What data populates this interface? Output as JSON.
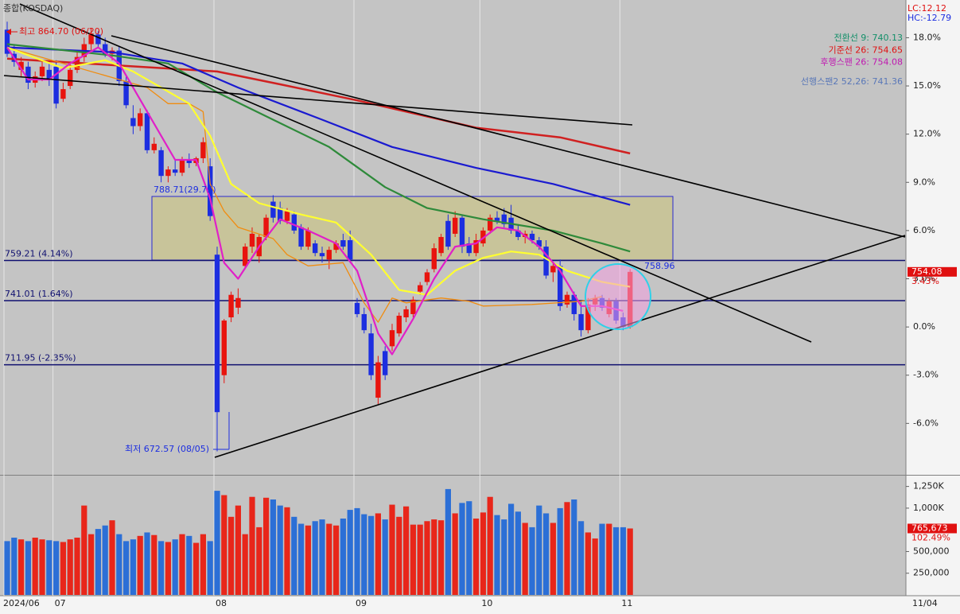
{
  "title": "종합(KOSDAQ)",
  "lc": "LC:12.12",
  "hc": "HC:-12.79",
  "last_date": "11/04",
  "chart_data": [
    {
      "type": "candlestick",
      "up_color": "#e8140e",
      "down_color": "#1c2ee0",
      "ylim": [
        -9.2,
        20.1
      ],
      "yticks": [
        {
          "value": 18,
          "label": "18.0%"
        },
        {
          "value": 15,
          "label": "15.0%"
        },
        {
          "value": 12,
          "label": "12.0%"
        },
        {
          "value": 9,
          "label": "9.0%"
        },
        {
          "value": 6,
          "label": "6.0%"
        },
        {
          "value": 3,
          "label": "3.0%"
        },
        {
          "value": 0,
          "label": "0.0%"
        },
        {
          "value": -3,
          "label": "-3.0%"
        },
        {
          "value": -6,
          "label": "-6.0%"
        }
      ],
      "categories": [
        "2024/06",
        null,
        null,
        null,
        null,
        null,
        null,
        "07",
        null,
        null,
        null,
        null,
        null,
        null,
        null,
        null,
        null,
        null,
        null,
        null,
        null,
        null,
        null,
        null,
        null,
        null,
        null,
        null,
        null,
        null,
        "08",
        null,
        null,
        null,
        null,
        null,
        null,
        null,
        null,
        null,
        null,
        null,
        null,
        null,
        null,
        null,
        null,
        null,
        null,
        null,
        "09",
        null,
        null,
        null,
        null,
        null,
        null,
        null,
        null,
        null,
        null,
        null,
        null,
        null,
        null,
        null,
        null,
        null,
        "10",
        null,
        null,
        null,
        null,
        null,
        null,
        null,
        null,
        null,
        null,
        null,
        null,
        null,
        null,
        null,
        null,
        null,
        null,
        null,
        "11",
        null
      ],
      "ohlc": [
        [
          18.5,
          19.0,
          16.8,
          17.0
        ],
        [
          17.0,
          17.6,
          16.2,
          16.5
        ],
        [
          16.0,
          16.8,
          15.6,
          16.5
        ],
        [
          16.2,
          16.5,
          14.8,
          15.2
        ],
        [
          15.2,
          15.9,
          14.9,
          15.6
        ],
        [
          15.6,
          16.6,
          15.3,
          16.2
        ],
        [
          16.0,
          16.4,
          15.0,
          15.4
        ],
        [
          16.2,
          16.6,
          13.6,
          13.9
        ],
        [
          14.2,
          15.2,
          14.0,
          14.8
        ],
        [
          15.0,
          16.4,
          14.8,
          16.0
        ],
        [
          16.0,
          17.2,
          15.8,
          16.8
        ],
        [
          16.8,
          18.0,
          16.5,
          17.6
        ],
        [
          17.6,
          18.6,
          17.2,
          18.2
        ],
        [
          18.2,
          18.4,
          17.4,
          17.6
        ],
        [
          17.6,
          18.0,
          16.8,
          17.0
        ],
        [
          17.0,
          17.4,
          16.6,
          17.2
        ],
        [
          17.2,
          17.5,
          15.0,
          15.3
        ],
        [
          15.3,
          15.6,
          13.6,
          13.8
        ],
        [
          13.0,
          13.8,
          12.0,
          12.5
        ],
        [
          12.5,
          13.6,
          12.2,
          13.3
        ],
        [
          13.3,
          13.5,
          10.8,
          11.0
        ],
        [
          11.0,
          11.8,
          10.8,
          11.4
        ],
        [
          11.0,
          11.2,
          9.0,
          9.4
        ],
        [
          9.4,
          10.0,
          9.0,
          9.8
        ],
        [
          9.8,
          10.4,
          9.4,
          9.6
        ],
        [
          9.6,
          10.6,
          9.4,
          10.4
        ],
        [
          10.4,
          10.8,
          9.9,
          10.2
        ],
        [
          10.2,
          10.6,
          10.0,
          10.5
        ],
        [
          10.5,
          11.8,
          10.2,
          11.5
        ],
        [
          10.0,
          10.5,
          6.6,
          6.9
        ],
        [
          4.5,
          5.0,
          -7.74,
          -5.3
        ],
        [
          -3.0,
          0.5,
          -3.5,
          0.4
        ],
        [
          0.6,
          2.2,
          0.3,
          2.0
        ],
        [
          1.2,
          2.4,
          0.8,
          1.8
        ],
        [
          3.8,
          5.2,
          3.6,
          5.0
        ],
        [
          5.0,
          6.2,
          4.6,
          5.8
        ],
        [
          4.4,
          5.8,
          4.0,
          5.6
        ],
        [
          5.6,
          7.0,
          5.4,
          6.8
        ],
        [
          7.8,
          8.2,
          6.5,
          6.8
        ],
        [
          7.4,
          7.8,
          6.4,
          6.6
        ],
        [
          6.6,
          7.4,
          6.4,
          7.2
        ],
        [
          7.0,
          7.2,
          5.8,
          6.0
        ],
        [
          6.2,
          6.4,
          4.8,
          5.0
        ],
        [
          5.0,
          6.2,
          4.8,
          6.0
        ],
        [
          5.2,
          5.4,
          4.4,
          4.6
        ],
        [
          4.6,
          5.0,
          4.0,
          4.4
        ],
        [
          4.2,
          5.0,
          3.6,
          4.8
        ],
        [
          4.8,
          5.4,
          4.6,
          5.2
        ],
        [
          5.4,
          5.8,
          4.8,
          5.0
        ],
        [
          5.4,
          6.0,
          4.0,
          4.2
        ],
        [
          1.5,
          1.8,
          0.6,
          0.8
        ],
        [
          0.8,
          1.2,
          -0.4,
          -0.2
        ],
        [
          -0.4,
          0.2,
          -3.3,
          -3.0
        ],
        [
          -4.4,
          -1.8,
          -4.8,
          -2.2
        ],
        [
          -1.5,
          -1.2,
          -3.3,
          -3.0
        ],
        [
          -1.2,
          0.2,
          -1.5,
          -0.2
        ],
        [
          -0.4,
          0.9,
          -0.6,
          0.7
        ],
        [
          0.6,
          1.3,
          0.3,
          1.1
        ],
        [
          0.8,
          1.9,
          0.6,
          1.7
        ],
        [
          2.2,
          2.8,
          2.0,
          2.6
        ],
        [
          2.8,
          3.6,
          2.6,
          3.4
        ],
        [
          3.6,
          5.2,
          3.4,
          4.9
        ],
        [
          4.6,
          5.8,
          4.4,
          5.6
        ],
        [
          6.6,
          7.0,
          4.8,
          5.0
        ],
        [
          5.8,
          7.2,
          5.6,
          6.8
        ],
        [
          6.8,
          7.0,
          4.6,
          5.0
        ],
        [
          5.2,
          5.6,
          4.4,
          4.6
        ],
        [
          4.6,
          5.8,
          4.4,
          5.4
        ],
        [
          5.2,
          6.2,
          5.0,
          6.0
        ],
        [
          6.0,
          7.0,
          5.8,
          6.8
        ],
        [
          6.8,
          7.2,
          6.4,
          6.6
        ],
        [
          7.0,
          7.4,
          6.2,
          6.4
        ],
        [
          6.8,
          7.6,
          5.8,
          6.0
        ],
        [
          6.0,
          6.4,
          5.4,
          5.6
        ],
        [
          5.6,
          6.0,
          5.2,
          5.8
        ],
        [
          5.8,
          6.0,
          5.2,
          5.4
        ],
        [
          5.4,
          5.6,
          4.8,
          5.0
        ],
        [
          5.0,
          5.4,
          3.0,
          3.2
        ],
        [
          3.4,
          4.0,
          2.8,
          3.8
        ],
        [
          3.8,
          4.2,
          1.0,
          1.3
        ],
        [
          1.4,
          2.2,
          1.2,
          2.0
        ],
        [
          2.0,
          2.2,
          0.4,
          0.8
        ],
        [
          0.8,
          1.6,
          -0.6,
          -0.2
        ],
        [
          -0.2,
          1.8,
          -0.4,
          1.4
        ],
        [
          1.4,
          2.0,
          1.0,
          1.8
        ],
        [
          1.8,
          2.0,
          1.0,
          1.2
        ],
        [
          0.8,
          1.8,
          0.6,
          1.6
        ],
        [
          1.6,
          1.8,
          0.2,
          0.4
        ],
        [
          0.6,
          0.9,
          -0.2,
          0.0
        ],
        [
          0.0,
          3.6,
          -0.1,
          3.43
        ]
      ],
      "lines": [
        {
          "color": "#d02020",
          "width": 2.5,
          "x": [
            0,
            30,
            39,
            50,
            67,
            79,
            89
          ],
          "values": [
            16.7,
            15.9,
            15.1,
            14.1,
            12.4,
            11.8,
            10.8
          ]
        },
        {
          "color": "#1a1ad0",
          "width": 2.2,
          "x": [
            0,
            15,
            25,
            33,
            45,
            55,
            67,
            78,
            89
          ],
          "values": [
            17.4,
            17.1,
            16.4,
            14.9,
            12.9,
            11.2,
            9.9,
            8.9,
            7.6
          ]
        },
        {
          "color": "#2e8a3a",
          "width": 2.2,
          "x": [
            0,
            15,
            23,
            30,
            38,
            46,
            54,
            60,
            68,
            78,
            85,
            89
          ],
          "values": [
            17.6,
            16.9,
            16.4,
            14.6,
            12.9,
            11.2,
            8.7,
            7.4,
            6.7,
            6.0,
            5.2,
            4.7
          ]
        },
        {
          "color": "#f08c10",
          "width": 1.3,
          "x": [
            0,
            20,
            23,
            26,
            28,
            29,
            31,
            33,
            38,
            40,
            43,
            48,
            51,
            53,
            55,
            57,
            62,
            66,
            68,
            75,
            82,
            85
          ],
          "values": [
            17.4,
            14.9,
            13.9,
            13.9,
            13.4,
            8.9,
            7.2,
            6.2,
            5.5,
            4.5,
            3.8,
            4.0,
            1.5,
            0.3,
            1.8,
            1.5,
            1.8,
            1.6,
            1.3,
            1.4,
            1.6,
            1.9
          ]
        },
        {
          "color": "#ffff30",
          "width": 2.2,
          "x": [
            0,
            8,
            14,
            18,
            22,
            26,
            29,
            32,
            36,
            42,
            47,
            52,
            56,
            60,
            64,
            68,
            72,
            76,
            80,
            85,
            89
          ],
          "values": [
            17.4,
            16.1,
            16.6,
            15.9,
            14.9,
            13.9,
            11.9,
            8.9,
            7.7,
            7.0,
            6.5,
            4.5,
            2.3,
            2.0,
            3.5,
            4.3,
            4.7,
            4.5,
            3.5,
            2.8,
            2.5
          ]
        },
        {
          "color": "#e020c8",
          "width": 2.2,
          "x": [
            0,
            3,
            6,
            9,
            13,
            16,
            20,
            24,
            27,
            29,
            31,
            33,
            36,
            39,
            43,
            47,
            50,
            53,
            55,
            58,
            61,
            64,
            67,
            70,
            73,
            76,
            79,
            82,
            85,
            88
          ],
          "values": [
            17.4,
            15.4,
            15.4,
            16.4,
            17.4,
            16.4,
            13.4,
            10.4,
            10.4,
            8.0,
            4.0,
            3.0,
            5.0,
            6.7,
            6.0,
            5.2,
            3.5,
            -0.4,
            -1.7,
            0.5,
            3.0,
            5.0,
            5.2,
            6.2,
            6.0,
            5.0,
            3.5,
            1.3,
            1.3,
            1.0
          ]
        }
      ],
      "levels": [
        {
          "value": 4.14,
          "label": "759.21 (4.14%)"
        },
        {
          "value": 1.64,
          "label": "741.01 (1.64%)"
        },
        {
          "value": -2.35,
          "label": "711.95 (-2.35%)"
        }
      ],
      "annotations": [
        "최고 864.70 (06/20)",
        "최저 672.57 (08/05)",
        "788.71(29.75)",
        "758.96"
      ],
      "legend": [
        {
          "label": "전환선 9: 740.13",
          "color": "#14906a"
        },
        {
          "label": "기준선 26: 754.65",
          "color": "#e01010"
        },
        {
          "label": "후행스팬 26: 754.08",
          "color": "#c018b0"
        },
        {
          "label": "선행스팬2 52,26: 741.36",
          "color": "#5a78b8"
        }
      ],
      "last": {
        "value": 3.43,
        "label": "3.43%",
        "price": "754.08"
      }
    },
    {
      "type": "bar",
      "ylim": [
        0,
        1375000
      ],
      "yticks": [
        {
          "value": 1250000,
          "label": "1,250K"
        },
        {
          "value": 1000000,
          "label": "1,000K"
        },
        {
          "value": 500000,
          "label": "500,000"
        },
        {
          "value": 250000,
          "label": "250,000"
        }
      ],
      "values": [
        620000,
        660000,
        640000,
        620000,
        660000,
        640000,
        630000,
        620000,
        610000,
        640000,
        660000,
        1030000,
        700000,
        760000,
        800000,
        860000,
        700000,
        620000,
        640000,
        680000,
        720000,
        690000,
        620000,
        610000,
        640000,
        700000,
        680000,
        600000,
        700000,
        620000,
        1200000,
        1150000,
        900000,
        1030000,
        700000,
        1130000,
        780000,
        1120000,
        1100000,
        1030000,
        1010000,
        900000,
        820000,
        800000,
        850000,
        870000,
        820000,
        800000,
        880000,
        980000,
        1000000,
        930000,
        910000,
        940000,
        870000,
        1040000,
        900000,
        1020000,
        810000,
        810000,
        850000,
        870000,
        860000,
        1220000,
        940000,
        1060000,
        1080000,
        880000,
        950000,
        1130000,
        920000,
        870000,
        1050000,
        960000,
        830000,
        780000,
        1030000,
        940000,
        830000,
        1000000,
        1070000,
        1100000,
        850000,
        720000,
        650000,
        820000,
        820000,
        780000,
        780000,
        765673
      ],
      "value_labels": {
        "last": "765,673"
      },
      "last_pct": "102.49%"
    }
  ]
}
